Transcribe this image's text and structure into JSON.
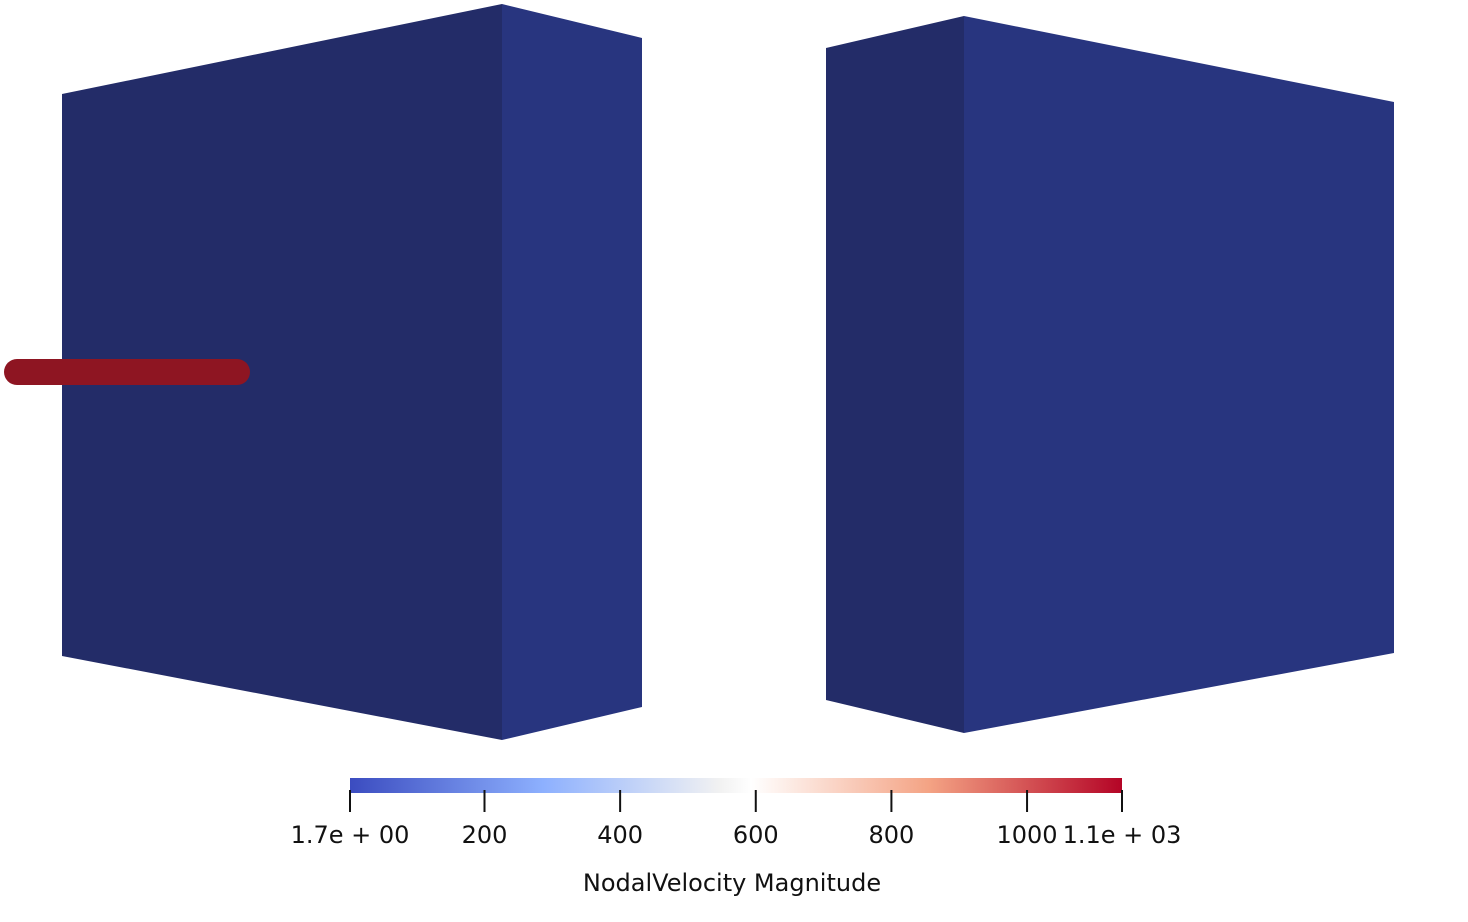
{
  "colorbar": {
    "title": "NodalVelocity Magnitude",
    "range": [
      1.7,
      1140
    ],
    "ticks": [
      {
        "value": 1.7,
        "label": "1.7e + 00"
      },
      200,
      400,
      600,
      800,
      1000,
      {
        "value": 1140,
        "label": "1.1e + 03"
      }
    ]
  }
}
